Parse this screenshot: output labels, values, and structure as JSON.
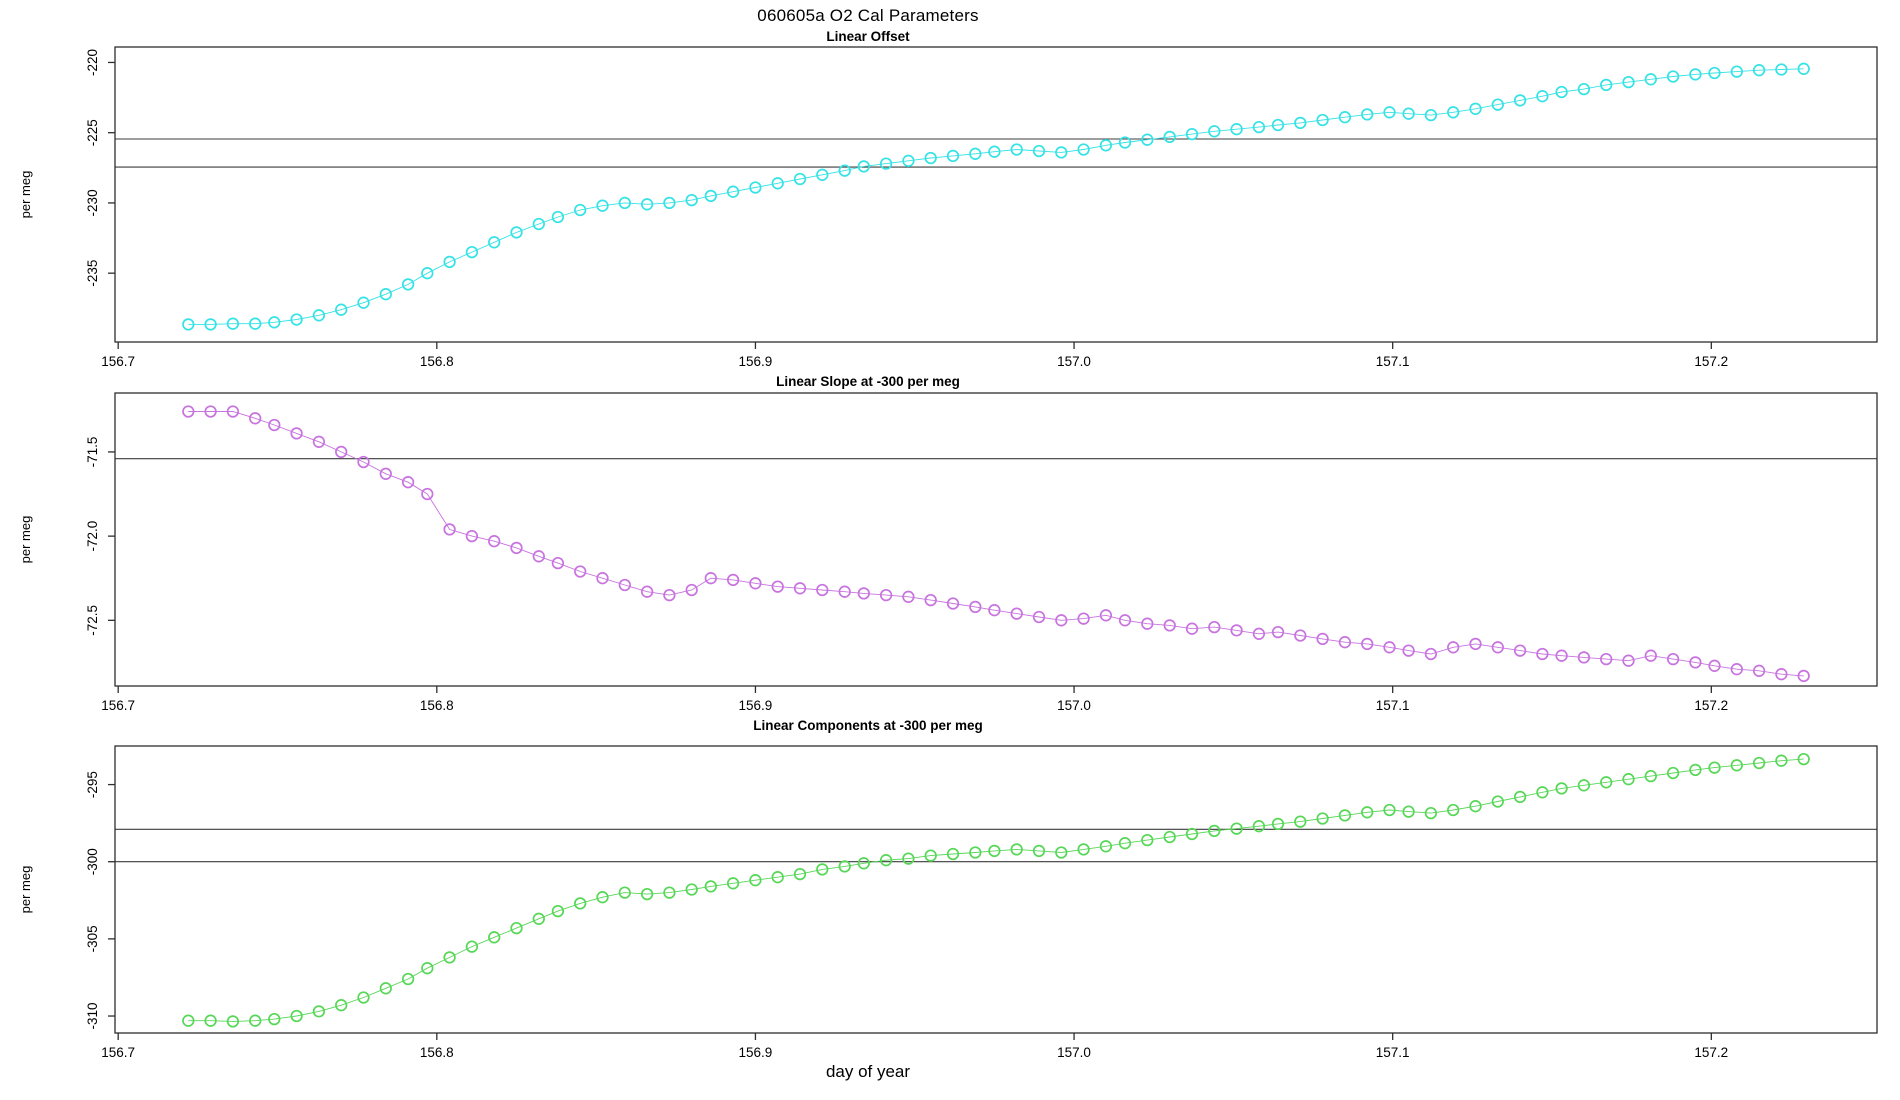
{
  "page": {
    "main_title": "060605a   O2 Cal Parameters",
    "x_axis_label": "day of year"
  },
  "chart_data": {
    "type": "scatter",
    "subtype": "points-with-lines",
    "grid": false,
    "legend": "none",
    "x_label": "day of year",
    "x_tick_labels": [
      "156.7",
      "156.8",
      "156.9",
      "157.0",
      "157.1",
      "157.2"
    ],
    "x_tick_values": [
      156.7,
      156.8,
      156.9,
      157.0,
      157.1,
      157.2
    ],
    "x_lim": [
      156.699,
      157.252
    ],
    "x": [
      156.722,
      156.729,
      156.736,
      156.743,
      156.749,
      156.756,
      156.763,
      156.77,
      156.777,
      156.784,
      156.791,
      156.797,
      156.804,
      156.811,
      156.818,
      156.825,
      156.832,
      156.838,
      156.845,
      156.852,
      156.859,
      156.866,
      156.873,
      156.88,
      156.886,
      156.893,
      156.9,
      156.907,
      156.914,
      156.921,
      156.928,
      156.934,
      156.941,
      156.948,
      156.955,
      156.962,
      156.969,
      156.975,
      156.982,
      156.989,
      156.996,
      157.003,
      157.01,
      157.016,
      157.023,
      157.03,
      157.037,
      157.044,
      157.051,
      157.058,
      157.064,
      157.071,
      157.078,
      157.085,
      157.092,
      157.099,
      157.105,
      157.112,
      157.119,
      157.126,
      157.133,
      157.14,
      157.147,
      157.153,
      157.16,
      157.167,
      157.174,
      157.181,
      157.188,
      157.195,
      157.201,
      157.208,
      157.215,
      157.222,
      157.229
    ],
    "panels": [
      {
        "title": "Linear Offset",
        "y_label": "per meg",
        "y_tick_labels": [
          "-220",
          "-225",
          "-230",
          "-235"
        ],
        "y_tick_values": [
          -220,
          -225,
          -230,
          -235
        ],
        "y_lim": [
          -239.9,
          -218.9
        ],
        "ref_lines": [
          -225.45,
          -227.45
        ],
        "color": "#35E2E6",
        "series_name": "linear offset",
        "values": [
          -238.65,
          -238.65,
          -238.6,
          -238.6,
          -238.5,
          -238.3,
          -238.0,
          -237.6,
          -237.1,
          -236.5,
          -235.8,
          -235.0,
          -234.2,
          -233.5,
          -232.8,
          -232.1,
          -231.5,
          -231.0,
          -230.5,
          -230.2,
          -230.0,
          -230.1,
          -230.0,
          -229.8,
          -229.5,
          -229.2,
          -228.9,
          -228.6,
          -228.3,
          -228.0,
          -227.7,
          -227.4,
          -227.2,
          -227.0,
          -226.8,
          -226.65,
          -226.5,
          -226.35,
          -226.2,
          -226.3,
          -226.4,
          -226.2,
          -225.9,
          -225.7,
          -225.5,
          -225.3,
          -225.1,
          -224.9,
          -224.75,
          -224.6,
          -224.45,
          -224.3,
          -224.1,
          -223.9,
          -223.7,
          -223.55,
          -223.65,
          -223.75,
          -223.55,
          -223.3,
          -223.0,
          -222.7,
          -222.4,
          -222.1,
          -221.9,
          -221.6,
          -221.4,
          -221.2,
          -221.0,
          -220.85,
          -220.75,
          -220.65,
          -220.55,
          -220.5,
          -220.45
        ]
      },
      {
        "title": "Linear Slope at -300 per meg",
        "y_label": "per meg",
        "y_tick_labels": [
          "-71.5",
          "-72.0",
          "-72.5"
        ],
        "y_tick_values": [
          -71.5,
          -72.0,
          -72.5
        ],
        "y_lim": [
          -72.89,
          -71.15
        ],
        "ref_lines": [
          -71.54
        ],
        "color": "#C873DF",
        "series_name": "linear slope",
        "values": [
          -71.26,
          -71.26,
          -71.26,
          -71.3,
          -71.34,
          -71.39,
          -71.44,
          -71.5,
          -71.56,
          -71.63,
          -71.68,
          -71.75,
          -71.96,
          -72.0,
          -72.03,
          -72.07,
          -72.12,
          -72.16,
          -72.21,
          -72.25,
          -72.29,
          -72.33,
          -72.35,
          -72.32,
          -72.25,
          -72.26,
          -72.28,
          -72.3,
          -72.31,
          -72.32,
          -72.33,
          -72.34,
          -72.35,
          -72.36,
          -72.38,
          -72.4,
          -72.42,
          -72.44,
          -72.46,
          -72.48,
          -72.5,
          -72.49,
          -72.47,
          -72.5,
          -72.52,
          -72.53,
          -72.55,
          -72.54,
          -72.56,
          -72.58,
          -72.57,
          -72.59,
          -72.61,
          -72.63,
          -72.64,
          -72.66,
          -72.68,
          -72.7,
          -72.66,
          -72.64,
          -72.66,
          -72.68,
          -72.7,
          -72.71,
          -72.72,
          -72.73,
          -72.74,
          -72.71,
          -72.73,
          -72.75,
          -72.77,
          -72.79,
          -72.8,
          -72.82,
          -72.83
        ]
      },
      {
        "title": "Linear Components at -300 per meg",
        "y_label": "per meg",
        "y_tick_labels": [
          "-295",
          "-300",
          "-305",
          "-310"
        ],
        "y_tick_values": [
          -295,
          -300,
          -305,
          -310
        ],
        "y_lim": [
          -311.1,
          -292.5
        ],
        "ref_lines": [
          -297.9,
          -300.0
        ],
        "color": "#57D757",
        "series_name": "linear components",
        "values": [
          -310.3,
          -310.3,
          -310.35,
          -310.3,
          -310.2,
          -310.0,
          -309.7,
          -309.3,
          -308.8,
          -308.2,
          -307.6,
          -306.9,
          -306.2,
          -305.5,
          -304.9,
          -304.3,
          -303.7,
          -303.2,
          -302.7,
          -302.3,
          -302.0,
          -302.1,
          -302.0,
          -301.8,
          -301.6,
          -301.4,
          -301.2,
          -301.0,
          -300.8,
          -300.5,
          -300.3,
          -300.1,
          -299.9,
          -299.8,
          -299.6,
          -299.5,
          -299.4,
          -299.3,
          -299.2,
          -299.3,
          -299.4,
          -299.2,
          -299.0,
          -298.8,
          -298.6,
          -298.4,
          -298.2,
          -298.0,
          -297.85,
          -297.7,
          -297.55,
          -297.4,
          -297.2,
          -297.0,
          -296.8,
          -296.65,
          -296.75,
          -296.85,
          -296.65,
          -296.4,
          -296.1,
          -295.8,
          -295.5,
          -295.25,
          -295.05,
          -294.85,
          -294.65,
          -294.45,
          -294.25,
          -294.05,
          -293.9,
          -293.75,
          -293.6,
          -293.45,
          -293.35
        ]
      }
    ]
  }
}
